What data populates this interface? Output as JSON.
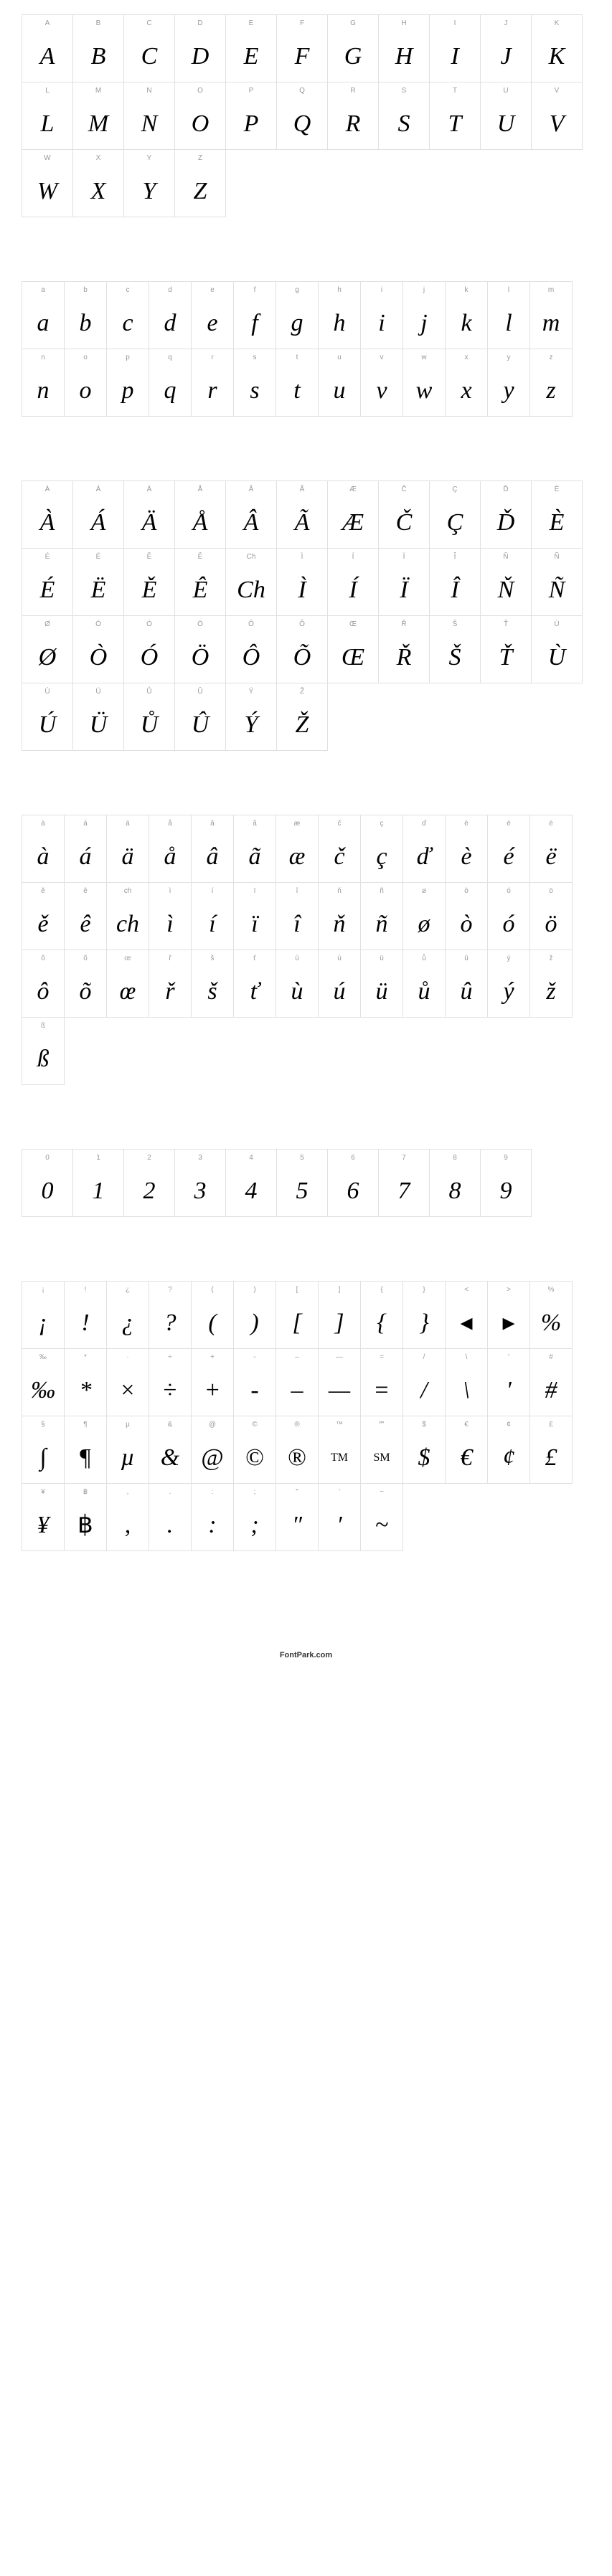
{
  "sections": [
    {
      "name": "uppercase",
      "perRow": 11,
      "cells": [
        {
          "label": "A",
          "char": "A"
        },
        {
          "label": "B",
          "char": "B"
        },
        {
          "label": "C",
          "char": "C"
        },
        {
          "label": "D",
          "char": "D"
        },
        {
          "label": "E",
          "char": "E"
        },
        {
          "label": "F",
          "char": "F"
        },
        {
          "label": "G",
          "char": "G"
        },
        {
          "label": "H",
          "char": "H"
        },
        {
          "label": "I",
          "char": "I"
        },
        {
          "label": "J",
          "char": "J"
        },
        {
          "label": "K",
          "char": "K"
        },
        {
          "label": "L",
          "char": "L"
        },
        {
          "label": "M",
          "char": "M"
        },
        {
          "label": "N",
          "char": "N"
        },
        {
          "label": "O",
          "char": "O"
        },
        {
          "label": "P",
          "char": "P"
        },
        {
          "label": "Q",
          "char": "Q"
        },
        {
          "label": "R",
          "char": "R"
        },
        {
          "label": "S",
          "char": "S"
        },
        {
          "label": "T",
          "char": "T"
        },
        {
          "label": "U",
          "char": "U"
        },
        {
          "label": "V",
          "char": "V"
        },
        {
          "label": "W",
          "char": "W"
        },
        {
          "label": "X",
          "char": "X"
        },
        {
          "label": "Y",
          "char": "Y"
        },
        {
          "label": "Z",
          "char": "Z"
        }
      ]
    },
    {
      "name": "lowercase",
      "perRow": 13,
      "cells": [
        {
          "label": "a",
          "char": "a"
        },
        {
          "label": "b",
          "char": "b"
        },
        {
          "label": "c",
          "char": "c"
        },
        {
          "label": "d",
          "char": "d"
        },
        {
          "label": "e",
          "char": "e"
        },
        {
          "label": "f",
          "char": "f"
        },
        {
          "label": "g",
          "char": "g"
        },
        {
          "label": "h",
          "char": "h"
        },
        {
          "label": "i",
          "char": "i"
        },
        {
          "label": "j",
          "char": "j"
        },
        {
          "label": "k",
          "char": "k"
        },
        {
          "label": "l",
          "char": "l"
        },
        {
          "label": "m",
          "char": "m"
        },
        {
          "label": "n",
          "char": "n"
        },
        {
          "label": "o",
          "char": "o"
        },
        {
          "label": "p",
          "char": "p"
        },
        {
          "label": "q",
          "char": "q"
        },
        {
          "label": "r",
          "char": "r"
        },
        {
          "label": "s",
          "char": "s"
        },
        {
          "label": "t",
          "char": "t"
        },
        {
          "label": "u",
          "char": "u"
        },
        {
          "label": "v",
          "char": "v"
        },
        {
          "label": "w",
          "char": "w"
        },
        {
          "label": "x",
          "char": "x"
        },
        {
          "label": "y",
          "char": "y"
        },
        {
          "label": "z",
          "char": "z"
        }
      ]
    },
    {
      "name": "accented-upper",
      "perRow": 11,
      "cells": [
        {
          "label": "À",
          "char": "À"
        },
        {
          "label": "Á",
          "char": "Á"
        },
        {
          "label": "Ä",
          "char": "Ä"
        },
        {
          "label": "Å",
          "char": "Å"
        },
        {
          "label": "Â",
          "char": "Â"
        },
        {
          "label": "Ã",
          "char": "Ã"
        },
        {
          "label": "Æ",
          "char": "Æ"
        },
        {
          "label": "Č",
          "char": "Č"
        },
        {
          "label": "Ç",
          "char": "Ç"
        },
        {
          "label": "Ď",
          "char": "Ď"
        },
        {
          "label": "È",
          "char": "È"
        },
        {
          "label": "É",
          "char": "É"
        },
        {
          "label": "Ë",
          "char": "Ë"
        },
        {
          "label": "Ě",
          "char": "Ě"
        },
        {
          "label": "Ê",
          "char": "Ê"
        },
        {
          "label": "Ch",
          "char": "Ch"
        },
        {
          "label": "Ì",
          "char": "Ì"
        },
        {
          "label": "Í",
          "char": "Í"
        },
        {
          "label": "Ï",
          "char": "Ï"
        },
        {
          "label": "Î",
          "char": "Î"
        },
        {
          "label": "Ň",
          "char": "Ň"
        },
        {
          "label": "Ñ",
          "char": "Ñ"
        },
        {
          "label": "Ø",
          "char": "Ø"
        },
        {
          "label": "Ò",
          "char": "Ò"
        },
        {
          "label": "Ó",
          "char": "Ó"
        },
        {
          "label": "Ö",
          "char": "Ö"
        },
        {
          "label": "Ô",
          "char": "Ô"
        },
        {
          "label": "Õ",
          "char": "Õ"
        },
        {
          "label": "Œ",
          "char": "Œ"
        },
        {
          "label": "Ř",
          "char": "Ř"
        },
        {
          "label": "Š",
          "char": "Š"
        },
        {
          "label": "Ť",
          "char": "Ť"
        },
        {
          "label": "Ù",
          "char": "Ù"
        },
        {
          "label": "Ú",
          "char": "Ú"
        },
        {
          "label": "Ü",
          "char": "Ü"
        },
        {
          "label": "Ů",
          "char": "Ů"
        },
        {
          "label": "Û",
          "char": "Û"
        },
        {
          "label": "Ý",
          "char": "Ý"
        },
        {
          "label": "Ž",
          "char": "Ž"
        }
      ]
    },
    {
      "name": "accented-lower",
      "perRow": 13,
      "cells": [
        {
          "label": "à",
          "char": "à"
        },
        {
          "label": "á",
          "char": "á"
        },
        {
          "label": "ä",
          "char": "ä"
        },
        {
          "label": "å",
          "char": "å"
        },
        {
          "label": "â",
          "char": "â"
        },
        {
          "label": "ã",
          "char": "ã"
        },
        {
          "label": "æ",
          "char": "æ"
        },
        {
          "label": "č",
          "char": "č"
        },
        {
          "label": "ç",
          "char": "ç"
        },
        {
          "label": "ď",
          "char": "ď"
        },
        {
          "label": "è",
          "char": "è"
        },
        {
          "label": "é",
          "char": "é"
        },
        {
          "label": "ë",
          "char": "ë"
        },
        {
          "label": "ě",
          "char": "ě"
        },
        {
          "label": "ê",
          "char": "ê"
        },
        {
          "label": "ch",
          "char": "ch"
        },
        {
          "label": "ì",
          "char": "ì"
        },
        {
          "label": "í",
          "char": "í"
        },
        {
          "label": "ï",
          "char": "ï"
        },
        {
          "label": "î",
          "char": "î"
        },
        {
          "label": "ň",
          "char": "ň"
        },
        {
          "label": "ñ",
          "char": "ñ"
        },
        {
          "label": "ø",
          "char": "ø"
        },
        {
          "label": "ò",
          "char": "ò"
        },
        {
          "label": "ó",
          "char": "ó"
        },
        {
          "label": "ö",
          "char": "ö"
        },
        {
          "label": "ô",
          "char": "ô"
        },
        {
          "label": "õ",
          "char": "õ"
        },
        {
          "label": "œ",
          "char": "œ"
        },
        {
          "label": "ř",
          "char": "ř"
        },
        {
          "label": "š",
          "char": "š"
        },
        {
          "label": "ť",
          "char": "ť"
        },
        {
          "label": "ù",
          "char": "ù"
        },
        {
          "label": "ú",
          "char": "ú"
        },
        {
          "label": "ü",
          "char": "ü"
        },
        {
          "label": "ů",
          "char": "ů"
        },
        {
          "label": "û",
          "char": "û"
        },
        {
          "label": "ý",
          "char": "ý"
        },
        {
          "label": "ž",
          "char": "ž"
        },
        {
          "label": "ß",
          "char": "ß"
        }
      ]
    },
    {
      "name": "digits",
      "perRow": 10,
      "cells": [
        {
          "label": "0",
          "char": "0"
        },
        {
          "label": "1",
          "char": "1"
        },
        {
          "label": "2",
          "char": "2"
        },
        {
          "label": "3",
          "char": "3"
        },
        {
          "label": "4",
          "char": "4"
        },
        {
          "label": "5",
          "char": "5"
        },
        {
          "label": "6",
          "char": "6"
        },
        {
          "label": "7",
          "char": "7"
        },
        {
          "label": "8",
          "char": "8"
        },
        {
          "label": "9",
          "char": "9"
        }
      ]
    },
    {
      "name": "symbols",
      "perRow": 13,
      "cells": [
        {
          "label": "¡",
          "char": "¡"
        },
        {
          "label": "!",
          "char": "!"
        },
        {
          "label": "¿",
          "char": "¿"
        },
        {
          "label": "?",
          "char": "?"
        },
        {
          "label": "(",
          "char": "("
        },
        {
          "label": ")",
          "char": ")"
        },
        {
          "label": "[",
          "char": "["
        },
        {
          "label": "]",
          "char": "]"
        },
        {
          "label": "{",
          "char": "{"
        },
        {
          "label": "}",
          "char": "}"
        },
        {
          "label": "<",
          "char": "◂",
          "upright": true
        },
        {
          "label": ">",
          "char": "▸",
          "upright": true
        },
        {
          "label": "%",
          "char": "%"
        },
        {
          "label": "‰",
          "char": "‰"
        },
        {
          "label": "*",
          "char": "*"
        },
        {
          "label": "·",
          "char": "×",
          "upright": true
        },
        {
          "label": "÷",
          "char": "÷",
          "upright": true
        },
        {
          "label": "+",
          "char": "+"
        },
        {
          "label": "-",
          "char": "-"
        },
        {
          "label": "–",
          "char": "–"
        },
        {
          "label": "—",
          "char": "—"
        },
        {
          "label": "=",
          "char": "=",
          "upright": true
        },
        {
          "label": "/",
          "char": "/"
        },
        {
          "label": "\\",
          "char": "\\"
        },
        {
          "label": "'",
          "char": "'"
        },
        {
          "label": "#",
          "char": "#"
        },
        {
          "label": "§",
          "char": "∫",
          "upright": true
        },
        {
          "label": "¶",
          "char": "¶",
          "upright": true
        },
        {
          "label": "µ",
          "char": "µ"
        },
        {
          "label": "&",
          "char": "&"
        },
        {
          "label": "@",
          "char": "@",
          "upright": true
        },
        {
          "label": "©",
          "char": "©",
          "upright": true
        },
        {
          "label": "®",
          "char": "®",
          "upright": true
        },
        {
          "label": "™",
          "char": "TM",
          "upright": true,
          "small": true
        },
        {
          "label": "℠",
          "char": "SM",
          "upright": true,
          "small": true
        },
        {
          "label": "$",
          "char": "$"
        },
        {
          "label": "€",
          "char": "€"
        },
        {
          "label": "¢",
          "char": "¢"
        },
        {
          "label": "£",
          "char": "£"
        },
        {
          "label": "¥",
          "char": "¥"
        },
        {
          "label": "฿",
          "char": "฿",
          "upright": true
        },
        {
          "label": ",",
          "char": ","
        },
        {
          "label": ".",
          "char": "."
        },
        {
          "label": ":",
          "char": ":"
        },
        {
          "label": ";",
          "char": ";"
        },
        {
          "label": "\"",
          "char": "″"
        },
        {
          "label": "'",
          "char": "′"
        },
        {
          "label": "~",
          "char": "~"
        }
      ]
    }
  ],
  "footer": "FontPark.com",
  "glyph_cell": {
    "width_lg": 72,
    "width_sm": 60,
    "height": 95,
    "border_color": "#e0e0e0",
    "bg_color": "#ffffff",
    "label_color": "#999999",
    "label_fontsize": 10,
    "char_color": "#000000",
    "char_fontsize": 34
  }
}
